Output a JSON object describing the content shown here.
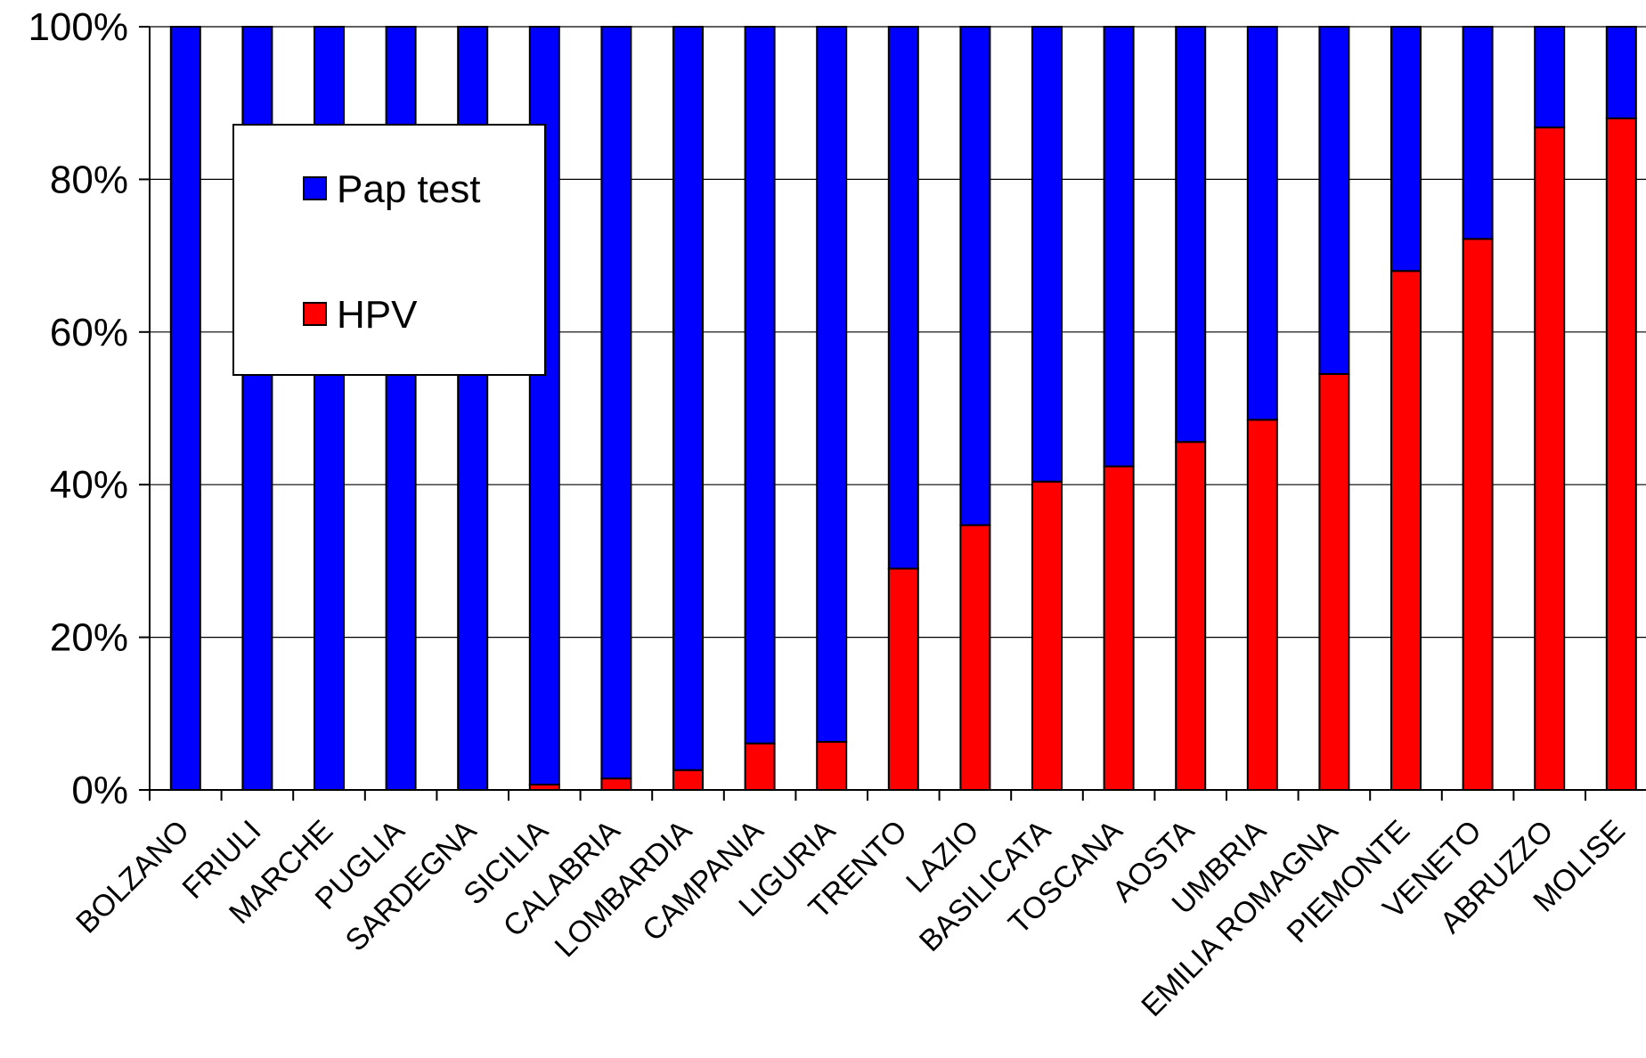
{
  "chart_data": {
    "type": "bar",
    "stacked": true,
    "percent": true,
    "categories": [
      "BOLZANO",
      "FRIULI",
      "MARCHE",
      "PUGLIA",
      "SARDEGNA",
      "SICILIA",
      "CALABRIA",
      "LOMBARDIA",
      "CAMPANIA",
      "LIGURIA",
      "TRENTO",
      "LAZIO",
      "BASILICATA",
      "TOSCANA",
      "AOSTA",
      "UMBRIA",
      "EMILIA ROMAGNA",
      "PIEMONTE",
      "VENETO",
      "ABRUZZO",
      "MOLISE"
    ],
    "series": [
      {
        "name": "HPV",
        "color": "#ff0000",
        "values": [
          0,
          0,
          0,
          0,
          0,
          0.7,
          1.5,
          2.6,
          6.1,
          6.3,
          29,
          34.7,
          40.4,
          42.4,
          45.6,
          48.5,
          54.5,
          68,
          72.2,
          86.8,
          88
        ]
      },
      {
        "name": "Pap test",
        "color": "#0000ff",
        "values": [
          100,
          100,
          100,
          100,
          100,
          99.3,
          98.5,
          97.4,
          93.9,
          93.7,
          71,
          65.3,
          59.6,
          57.6,
          54.4,
          51.5,
          45.5,
          32,
          27.8,
          13.2,
          12
        ]
      }
    ],
    "legend_order": [
      "Pap test",
      "HPV"
    ],
    "yticks": [
      "0%",
      "20%",
      "40%",
      "60%",
      "80%",
      "100%"
    ],
    "ylim": [
      0,
      100
    ],
    "grid": true,
    "legend_position": "top-left inside plot"
  }
}
